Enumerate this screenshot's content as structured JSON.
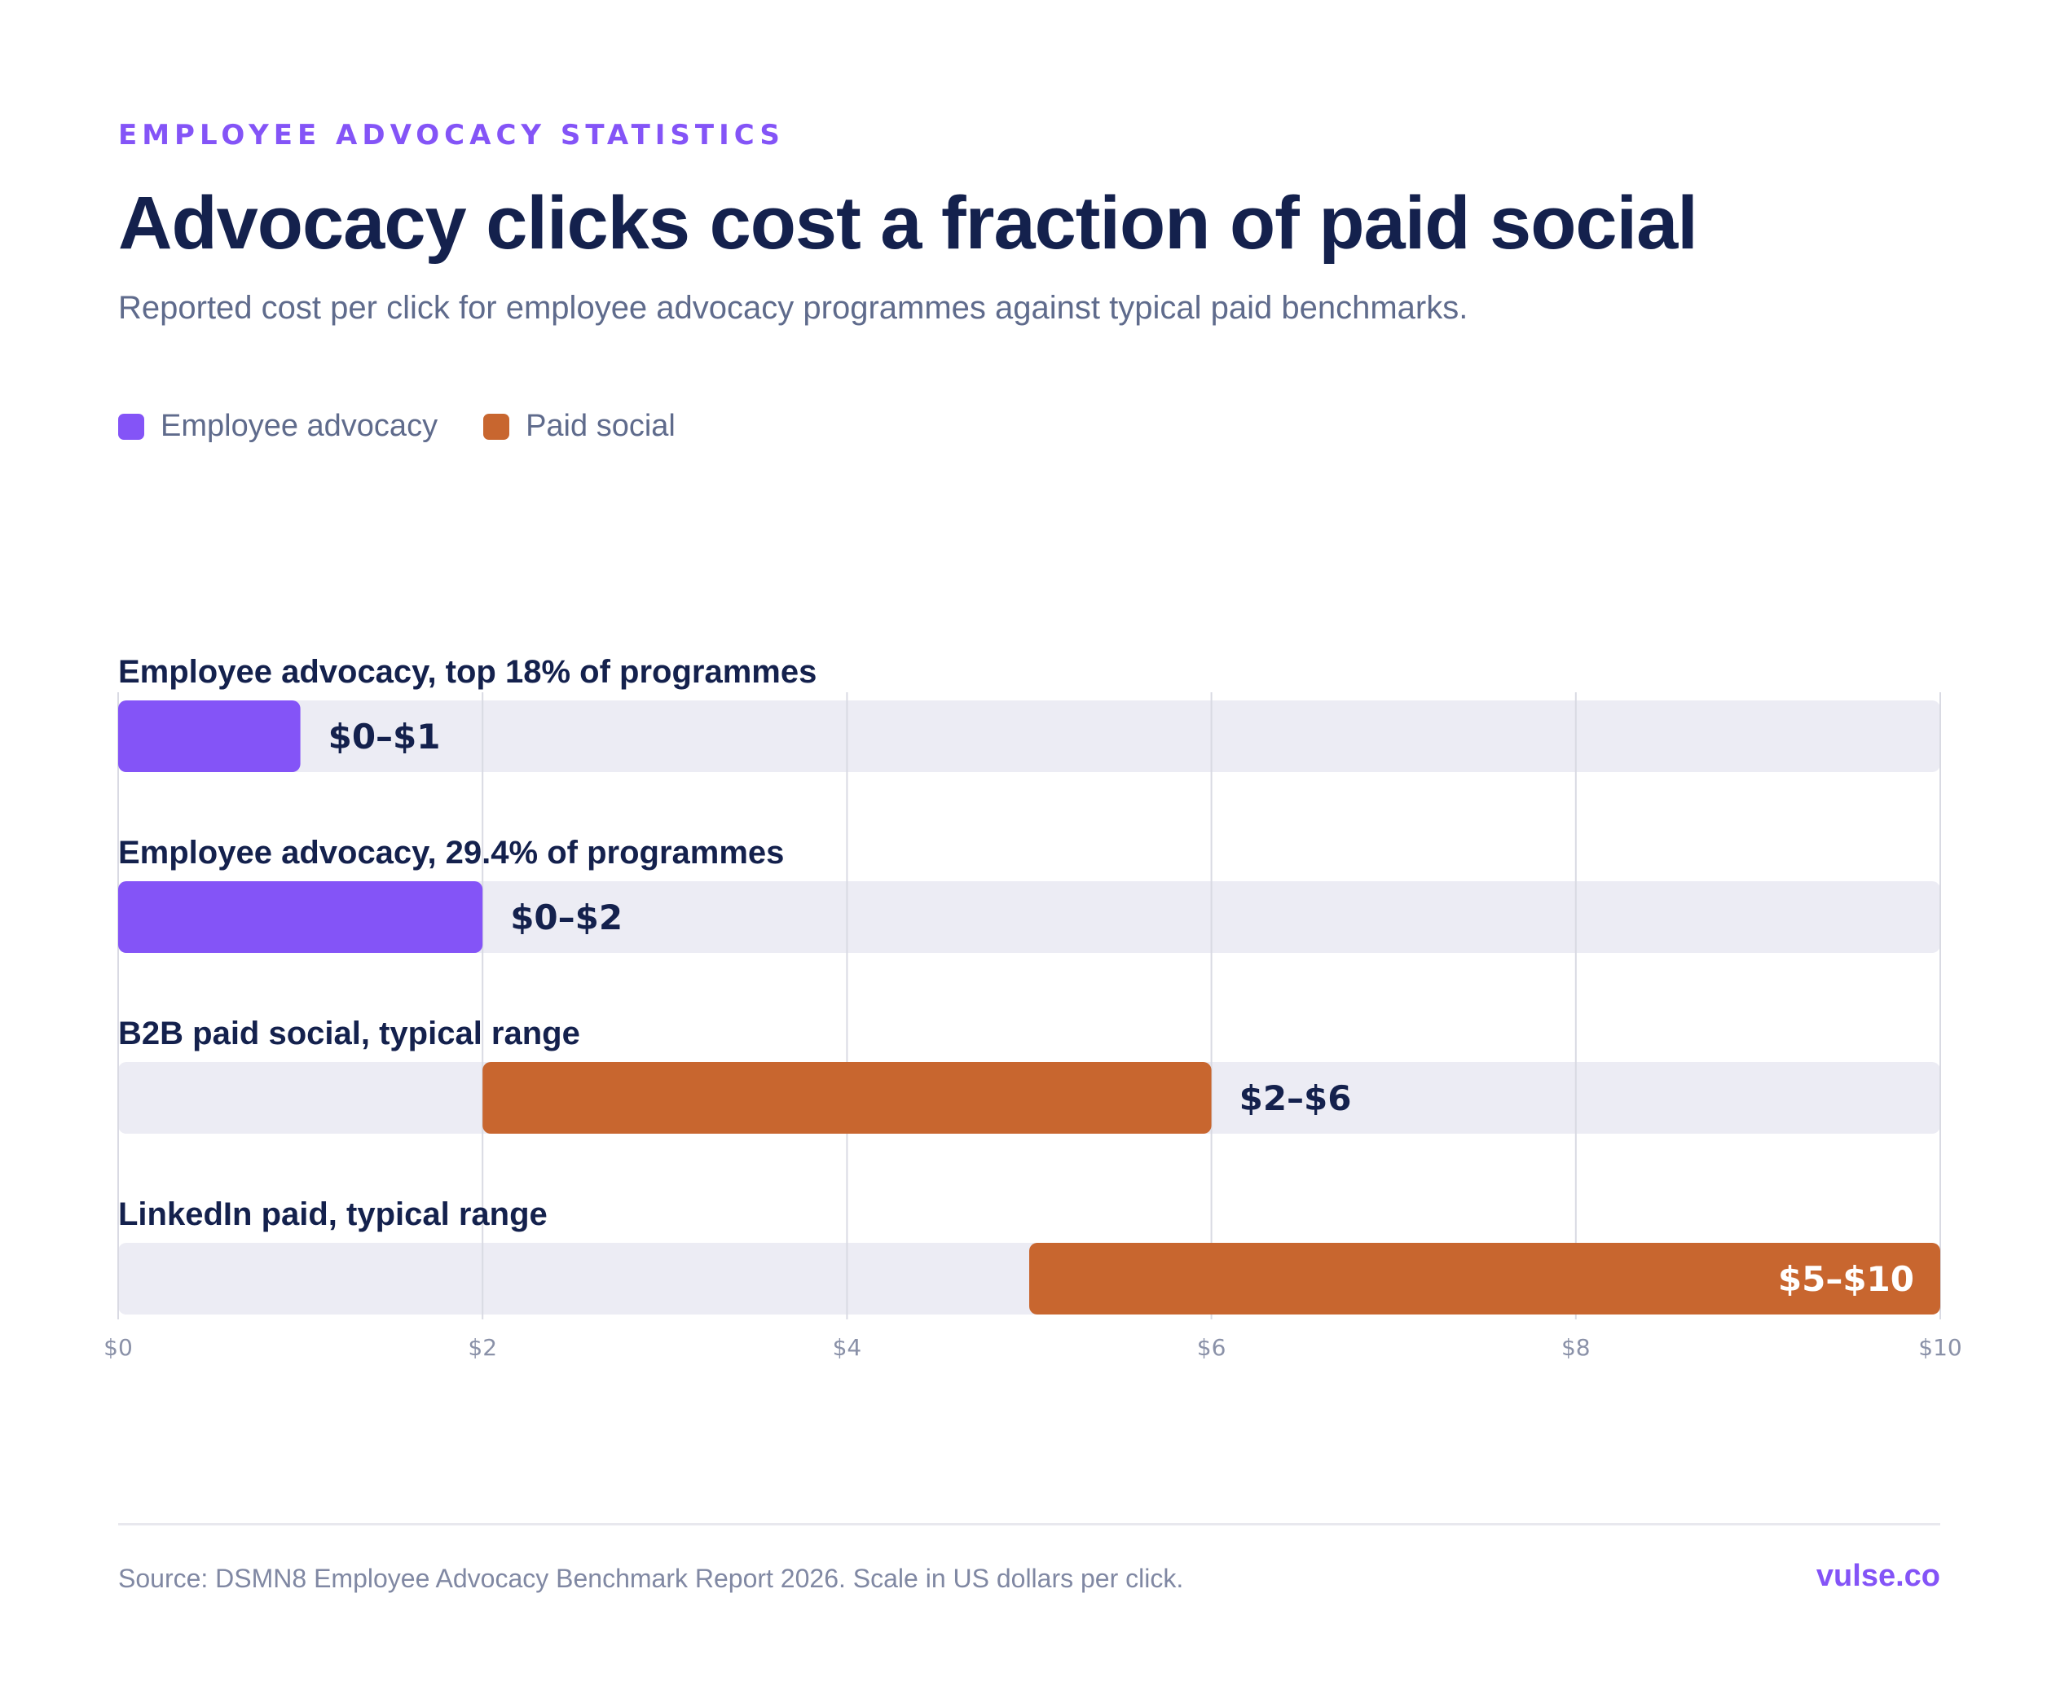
{
  "header": {
    "eyebrow": "EMPLOYEE ADVOCACY STATISTICS",
    "title": "Advocacy clicks cost a fraction of paid social",
    "subtitle": "Reported cost per click for employee advocacy programmes against typical paid benchmarks."
  },
  "legend": [
    {
      "label": "Employee advocacy",
      "color": "#8454f7"
    },
    {
      "label": "Paid social",
      "color": "#c8662f"
    }
  ],
  "colors": {
    "advocacy": "#8454f7",
    "paid": "#c8662f",
    "track": "#ececf4",
    "gridline": "#d9dae3",
    "label_dark": "#14214d",
    "tick": "#8a91a8"
  },
  "chart_data": {
    "type": "bar",
    "orientation": "horizontal",
    "subtype": "range",
    "xlim": [
      0,
      10
    ],
    "xticks": [
      0,
      2,
      4,
      6,
      8,
      10
    ],
    "xtick_labels": [
      "$0",
      "$2",
      "$4",
      "$6",
      "$8",
      "$10"
    ],
    "grid": true,
    "legend_position": "top-left",
    "series": [
      {
        "name": "Employee advocacy",
        "color": "#8454f7"
      },
      {
        "name": "Paid social",
        "color": "#c8662f"
      }
    ],
    "rows": [
      {
        "category": "Employee advocacy, top 18% of programmes",
        "series": "Employee advocacy",
        "low": 0,
        "high": 1,
        "label": "$0–$1"
      },
      {
        "category": "Employee advocacy, 29.4% of programmes",
        "series": "Employee advocacy",
        "low": 0,
        "high": 2,
        "label": "$0–$2"
      },
      {
        "category": "B2B paid social, typical range",
        "series": "Paid social",
        "low": 2,
        "high": 6,
        "label": "$2–$6"
      },
      {
        "category": "LinkedIn paid, typical range",
        "series": "Paid social",
        "low": 5,
        "high": 10,
        "label": "$5–$10"
      }
    ]
  },
  "footer": {
    "source": "Source: DSMN8 Employee Advocacy Benchmark Report 2026. Scale in US dollars per click.",
    "brand": "vulse.co"
  }
}
